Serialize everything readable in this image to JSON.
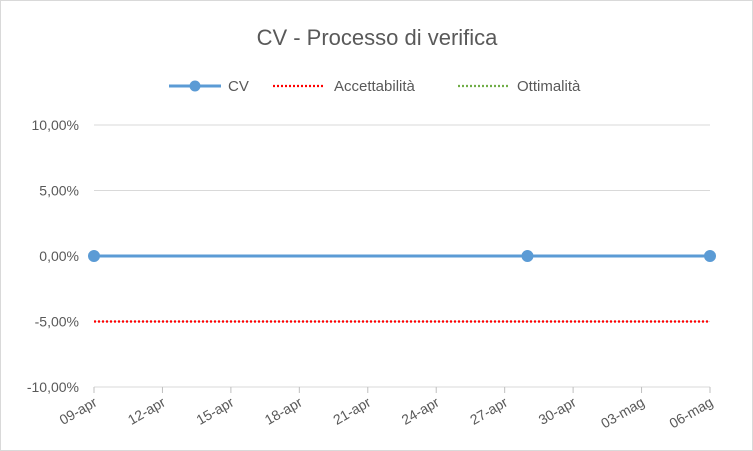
{
  "chart_data": {
    "type": "line",
    "title": "CV - Processo di verifica",
    "xlabel": "",
    "ylabel": "",
    "x_ticks": [
      "09-apr",
      "12-apr",
      "15-apr",
      "18-apr",
      "21-apr",
      "24-apr",
      "27-apr",
      "30-apr",
      "03-mag",
      "06-mag"
    ],
    "x_range": [
      "2024-04-09",
      "2024-05-06"
    ],
    "y_ticks": [
      "10,00%",
      "5,00%",
      "0,00%",
      "-5,00%",
      "-10,00%"
    ],
    "ylim": [
      -0.1,
      0.1
    ],
    "grid": true,
    "legend_position": "top",
    "series": [
      {
        "name": "CV",
        "color": "#5b9bd5",
        "style": "line-markers",
        "points": [
          {
            "x": "2024-04-09",
            "y": 0.0
          },
          {
            "x": "2024-04-28",
            "y": 0.0
          },
          {
            "x": "2024-05-06",
            "y": 0.0
          }
        ]
      },
      {
        "name": "Accettabilità",
        "color": "#ff0000",
        "style": "dotted",
        "points": [
          {
            "x": "2024-04-09",
            "y": -0.05
          },
          {
            "x": "2024-05-06",
            "y": -0.05
          }
        ]
      },
      {
        "name": "Ottimalità",
        "color": "#70ad47",
        "style": "dotted",
        "points": [
          {
            "x": "2024-04-09",
            "y": 0.0
          },
          {
            "x": "2024-05-06",
            "y": 0.0
          }
        ]
      }
    ]
  }
}
